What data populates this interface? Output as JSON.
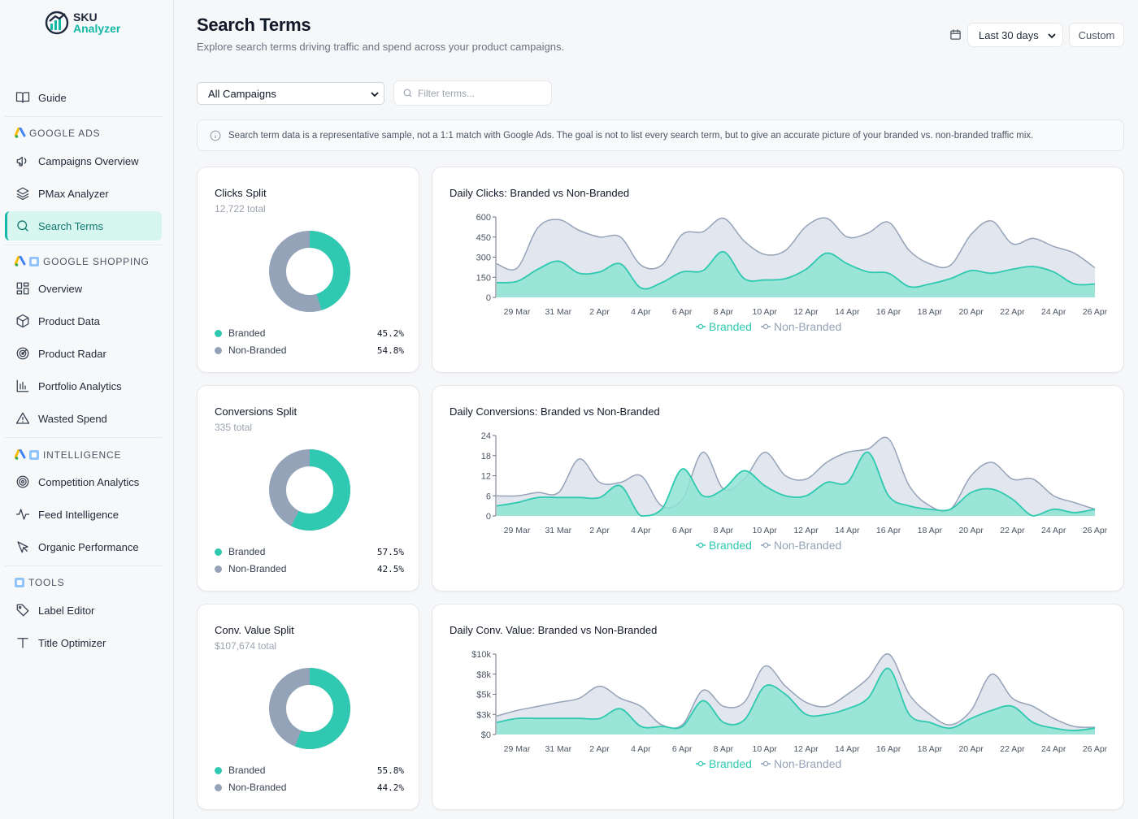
{
  "brand": {
    "line1": "SKU",
    "line2": "Analyzer"
  },
  "sidebar": {
    "guide": "Guide",
    "sections": {
      "google_ads": "GOOGLE ADS",
      "google_shopping": "GOOGLE SHOPPING",
      "intelligence": "INTELLIGENCE",
      "tools": "TOOLS"
    },
    "items": {
      "campaigns_overview": "Campaigns Overview",
      "pmax_analyzer": "PMax Analyzer",
      "search_terms": "Search Terms",
      "overview": "Overview",
      "product_data": "Product Data",
      "product_radar": "Product Radar",
      "portfolio_analytics": "Portfolio Analytics",
      "wasted_spend": "Wasted Spend",
      "competition_analytics": "Competition Analytics",
      "feed_intelligence": "Feed Intelligence",
      "organic_performance": "Organic Performance",
      "label_editor": "Label Editor",
      "title_optimizer": "Title Optimizer"
    }
  },
  "header": {
    "title": "Search Terms",
    "subtitle": "Explore search terms driving traffic and spend across your product campaigns.",
    "date_range": "Last 30 days",
    "custom_label": "Custom"
  },
  "filters": {
    "campaign": "All Campaigns",
    "search_placeholder": "Filter terms..."
  },
  "info_banner": "Search term data is a representative sample, not a 1:1 match with Google Ads. The goal is not to list every search term, but to give an accurate picture of your branded vs. non-branded traffic mix.",
  "colors": {
    "branded": "#2ec9b0",
    "non_branded": "#94a3b8",
    "accent": "#14b8a6"
  },
  "splits": [
    {
      "title": "Clicks Split",
      "total": "12,722 total",
      "branded_label": "Branded",
      "non_branded_label": "Non-Branded",
      "branded_pct": "45.2%",
      "non_branded_pct": "54.8%",
      "branded_share": 0.452
    },
    {
      "title": "Conversions Split",
      "total": "335 total",
      "branded_label": "Branded",
      "non_branded_label": "Non-Branded",
      "branded_pct": "57.5%",
      "non_branded_pct": "42.5%",
      "branded_share": 0.575
    },
    {
      "title": "Conv. Value Split",
      "total": "$107,674 total",
      "branded_label": "Branded",
      "non_branded_label": "Non-Branded",
      "branded_pct": "55.8%",
      "non_branded_pct": "44.2%",
      "branded_share": 0.558
    }
  ],
  "chart_data": [
    {
      "type": "area",
      "title": "Daily Clicks: Branded vs Non-Branded",
      "x_ticks": [
        "29 Mar",
        "31 Mar",
        "2 Apr",
        "4 Apr",
        "6 Apr",
        "8 Apr",
        "10 Apr",
        "12 Apr",
        "14 Apr",
        "16 Apr",
        "18 Apr",
        "20 Apr",
        "22 Apr",
        "24 Apr",
        "26 Apr"
      ],
      "y_ticks": [
        "0",
        "150",
        "300",
        "450",
        "600"
      ],
      "ylim": [
        0,
        600
      ],
      "legend": [
        "Branded",
        "Non-Branded"
      ],
      "series": [
        {
          "name": "Branded",
          "values": [
            110,
            120,
            210,
            270,
            180,
            190,
            250,
            70,
            110,
            190,
            200,
            340,
            140,
            130,
            140,
            210,
            330,
            250,
            190,
            180,
            80,
            100,
            140,
            200,
            180,
            210,
            230,
            190,
            100,
            100
          ]
        },
        {
          "name": "Non-Branded",
          "values": [
            250,
            220,
            520,
            580,
            500,
            450,
            450,
            240,
            240,
            470,
            490,
            590,
            420,
            320,
            350,
            530,
            590,
            450,
            480,
            560,
            350,
            250,
            240,
            470,
            570,
            400,
            440,
            380,
            330,
            220
          ]
        }
      ]
    },
    {
      "type": "area",
      "title": "Daily Conversions: Branded vs Non-Branded",
      "x_ticks": [
        "29 Mar",
        "31 Mar",
        "2 Apr",
        "4 Apr",
        "6 Apr",
        "8 Apr",
        "10 Apr",
        "12 Apr",
        "14 Apr",
        "16 Apr",
        "18 Apr",
        "20 Apr",
        "22 Apr",
        "24 Apr",
        "26 Apr"
      ],
      "y_ticks": [
        "0",
        "6",
        "12",
        "18",
        "24"
      ],
      "ylim": [
        0,
        24
      ],
      "legend": [
        "Branded",
        "Non-Branded"
      ],
      "series": [
        {
          "name": "Branded",
          "values": [
            3,
            4,
            5.5,
            5.5,
            5.5,
            5.5,
            9,
            0,
            2,
            14,
            6,
            8,
            13.5,
            9,
            6,
            6,
            10,
            10,
            19,
            6,
            3,
            2,
            2,
            7,
            8,
            5,
            0,
            2,
            1,
            2
          ]
        },
        {
          "name": "Non-Branded",
          "values": [
            6,
            6,
            7,
            7,
            17,
            10,
            10,
            12,
            3,
            5,
            19,
            8,
            11,
            19,
            12,
            11,
            16,
            19,
            20,
            23,
            9,
            3,
            2,
            12,
            16,
            11,
            11,
            6,
            4,
            2
          ]
        }
      ]
    },
    {
      "type": "area",
      "title": "Daily Conv. Value: Branded vs Non-Branded",
      "x_ticks": [
        "29 Mar",
        "31 Mar",
        "2 Apr",
        "4 Apr",
        "6 Apr",
        "8 Apr",
        "10 Apr",
        "12 Apr",
        "14 Apr",
        "16 Apr",
        "18 Apr",
        "20 Apr",
        "22 Apr",
        "24 Apr",
        "26 Apr"
      ],
      "y_ticks": [
        "$0",
        "$3k",
        "$5k",
        "$8k",
        "$10k"
      ],
      "ylim": [
        0,
        10000
      ],
      "legend": [
        "Branded",
        "Non-Branded"
      ],
      "series": [
        {
          "name": "Branded",
          "values": [
            1500,
            2000,
            2000,
            2000,
            2000,
            2000,
            3200,
            1000,
            1000,
            1000,
            4200,
            1500,
            1800,
            6000,
            5000,
            2500,
            2500,
            3200,
            4500,
            8200,
            2500,
            1500,
            800,
            2000,
            3000,
            3500,
            1500,
            800,
            500,
            800
          ]
        },
        {
          "name": "Non-Branded",
          "values": [
            2300,
            3000,
            3500,
            4000,
            4500,
            6000,
            4500,
            3500,
            1200,
            1200,
            5500,
            3500,
            4000,
            8500,
            6000,
            4000,
            3500,
            5000,
            7000,
            10000,
            5000,
            2500,
            1200,
            3000,
            7500,
            4500,
            3500,
            2000,
            1000,
            900
          ]
        }
      ]
    }
  ]
}
